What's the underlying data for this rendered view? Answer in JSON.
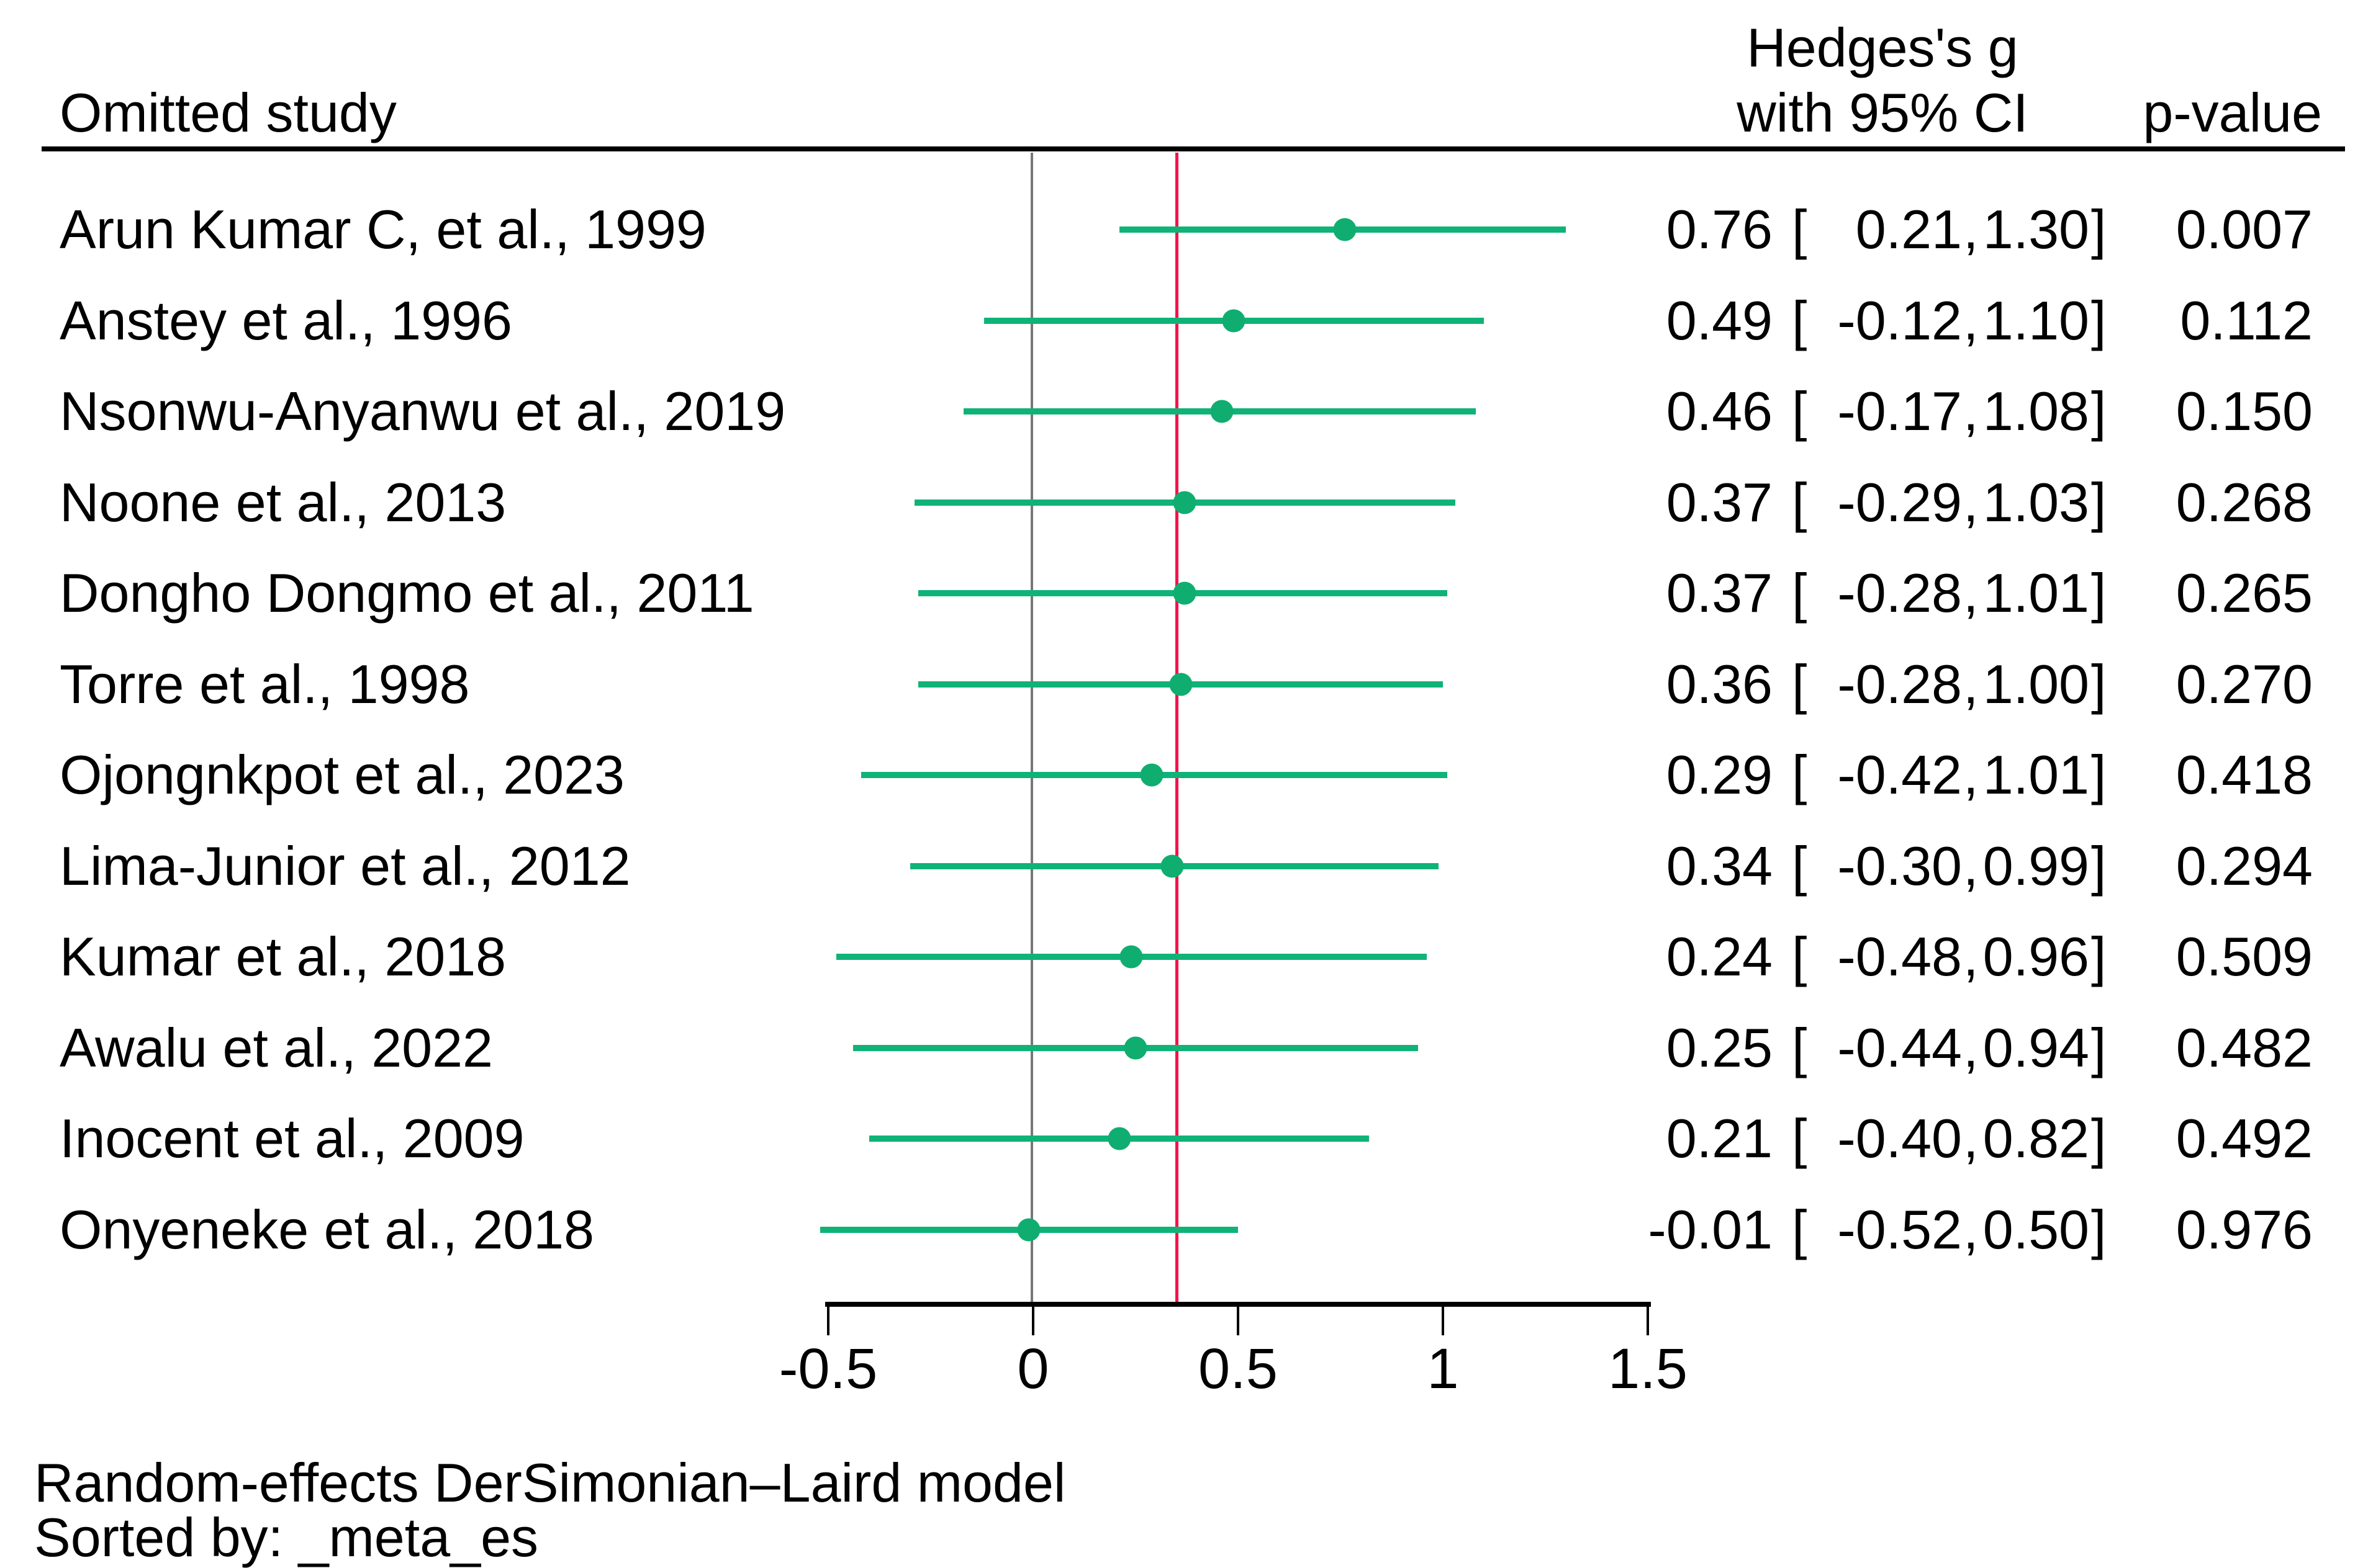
{
  "header": {
    "study_col": "Omitted study",
    "effect_col_line1": "Hedges's g",
    "effect_col_line2": "with 95% CI",
    "p_col": "p-value"
  },
  "footer": {
    "line1": "Random-effects DerSimonian–Laird model",
    "line2": "Sorted by: _meta_es"
  },
  "colors": {
    "ci_line": "#10b377",
    "marker": "#0fae70",
    "reference_line": "#f3134b",
    "zero_line": "#777777",
    "axis": "#000000",
    "text": "#000000",
    "background": "#ffffff"
  },
  "reference_value": 0.35,
  "chart_data": {
    "type": "scatter",
    "subtype": "forest-plot-leave-one-out",
    "title": "",
    "xlabel": "",
    "ylabel": "",
    "x_axis": {
      "min": -0.5,
      "max": 1.5,
      "tick_values": [
        -0.5,
        0,
        0.5,
        1,
        1.5
      ],
      "tick_labels": [
        "-0.5",
        "0",
        "0.5",
        "1",
        "1.5"
      ]
    },
    "zero_line_x": 0,
    "pooled_reference_x": 0.35,
    "grid": false,
    "legend": false,
    "studies": [
      {
        "label": "Arun Kumar C, et al., 1999",
        "es": 0.76,
        "lo": 0.21,
        "hi": 1.3,
        "es_text": "0.76",
        "lo_text": "0.21",
        "hi_text": "1.30",
        "p_text": "0.007"
      },
      {
        "label": "Anstey et al., 1996",
        "es": 0.49,
        "lo": -0.12,
        "hi": 1.1,
        "es_text": "0.49",
        "lo_text": "-0.12",
        "hi_text": "1.10",
        "p_text": "0.112"
      },
      {
        "label": "Nsonwu-Anyanwu et al., 2019",
        "es": 0.46,
        "lo": -0.17,
        "hi": 1.08,
        "es_text": "0.46",
        "lo_text": "-0.17",
        "hi_text": "1.08",
        "p_text": "0.150"
      },
      {
        "label": "Noone et al., 2013",
        "es": 0.37,
        "lo": -0.29,
        "hi": 1.03,
        "es_text": "0.37",
        "lo_text": "-0.29",
        "hi_text": "1.03",
        "p_text": "0.268"
      },
      {
        "label": "Dongho Dongmo et al., 2011",
        "es": 0.37,
        "lo": -0.28,
        "hi": 1.01,
        "es_text": "0.37",
        "lo_text": "-0.28",
        "hi_text": "1.01",
        "p_text": "0.265"
      },
      {
        "label": "Torre et al., 1998",
        "es": 0.36,
        "lo": -0.28,
        "hi": 1.0,
        "es_text": "0.36",
        "lo_text": "-0.28",
        "hi_text": "1.00",
        "p_text": "0.270"
      },
      {
        "label": "Ojongnkpot et al., 2023",
        "es": 0.29,
        "lo": -0.42,
        "hi": 1.01,
        "es_text": "0.29",
        "lo_text": "-0.42",
        "hi_text": "1.01",
        "p_text": "0.418"
      },
      {
        "label": "Lima-Junior et al., 2012",
        "es": 0.34,
        "lo": -0.3,
        "hi": 0.99,
        "es_text": "0.34",
        "lo_text": "-0.30",
        "hi_text": "0.99",
        "p_text": "0.294"
      },
      {
        "label": "Kumar et al., 2018",
        "es": 0.24,
        "lo": -0.48,
        "hi": 0.96,
        "es_text": "0.24",
        "lo_text": "-0.48",
        "hi_text": "0.96",
        "p_text": "0.509"
      },
      {
        "label": "Awalu et al., 2022",
        "es": 0.25,
        "lo": -0.44,
        "hi": 0.94,
        "es_text": "0.25",
        "lo_text": "-0.44",
        "hi_text": "0.94",
        "p_text": "0.482"
      },
      {
        "label": "Inocent et al., 2009",
        "es": 0.21,
        "lo": -0.4,
        "hi": 0.82,
        "es_text": "0.21",
        "lo_text": "-0.40",
        "hi_text": "0.82",
        "p_text": "0.492"
      },
      {
        "label": "Onyeneke et al., 2018",
        "es": -0.01,
        "lo": -0.52,
        "hi": 0.5,
        "es_text": "-0.01",
        "lo_text": "-0.52",
        "hi_text": "0.50",
        "p_text": "0.976"
      }
    ],
    "annotations": [
      "Random-effects DerSimonian–Laird model",
      "Sorted by: _meta_es"
    ]
  }
}
